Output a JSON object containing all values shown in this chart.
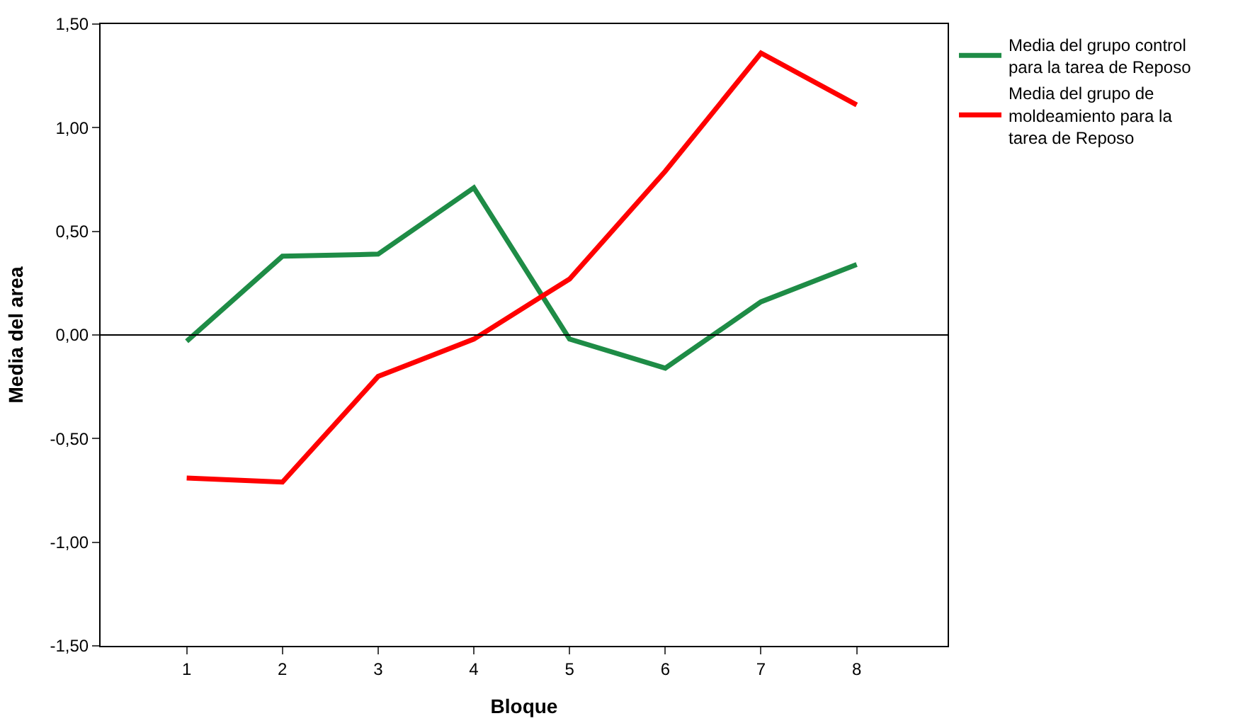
{
  "chart_data": {
    "type": "line",
    "xlabel": "Bloque",
    "ylabel": "Media del area",
    "x": [
      1,
      2,
      3,
      4,
      5,
      6,
      7,
      8
    ],
    "series": [
      {
        "name": "Media del grupo control para la tarea de Reposo",
        "color": "#1e8c46",
        "values": [
          -0.03,
          0.38,
          0.39,
          0.71,
          -0.02,
          -0.16,
          0.16,
          0.34
        ]
      },
      {
        "name": "Media del grupo de moldeamiento para la tarea de Reposo",
        "color": "#ff0000",
        "values": [
          -0.69,
          -0.71,
          -0.2,
          -0.02,
          0.27,
          0.79,
          1.36,
          1.11
        ]
      }
    ],
    "xlim": [
      0.1,
      8.95
    ],
    "xticks": [
      1,
      2,
      3,
      4,
      5,
      6,
      7,
      8
    ],
    "ylim": [
      -1.5,
      1.5
    ],
    "yticks": [
      {
        "value": -1.5,
        "label": "-1,50"
      },
      {
        "value": -1.0,
        "label": "-1,00"
      },
      {
        "value": -0.5,
        "label": "-0,50"
      },
      {
        "value": 0,
        "label": "0,00"
      },
      {
        "value": 0.5,
        "label": "0,50"
      },
      {
        "value": 1.0,
        "label": "1,00"
      },
      {
        "value": 1.5,
        "label": "1,50"
      }
    ],
    "ref_lines": [
      {
        "axis": "y",
        "value": 0,
        "color": "#000000"
      }
    ],
    "legend": "top right",
    "marker": "none",
    "line_style": "solid"
  }
}
